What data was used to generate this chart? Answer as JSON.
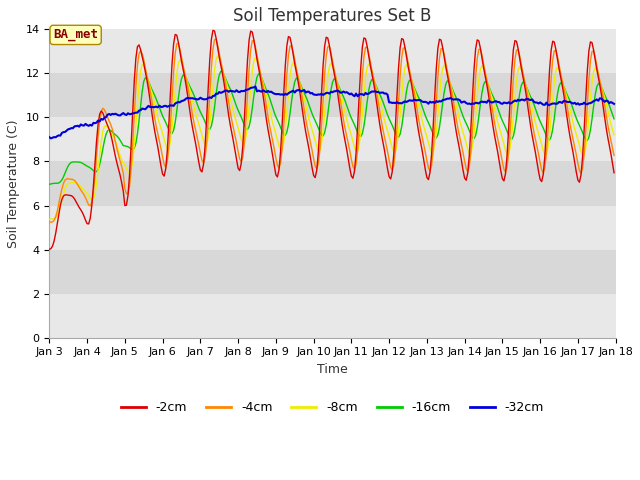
{
  "title": "Soil Temperatures Set B",
  "xlabel": "Time",
  "ylabel": "Soil Temperature (C)",
  "annotation": "BA_met",
  "ylim": [
    0,
    14
  ],
  "yticks": [
    0,
    2,
    4,
    6,
    8,
    10,
    12,
    14
  ],
  "xtick_labels": [
    "Jan 3",
    "Jan 4",
    "Jan 5",
    "Jan 6",
    "Jan 7",
    "Jan 8",
    "Jan 9",
    "Jan 10",
    "Jan 11",
    "Jan 12",
    "Jan 13",
    "Jan 14",
    "Jan 15",
    "Jan 16",
    "Jan 17",
    "Jan 18"
  ],
  "legend_labels": [
    "-2cm",
    "-4cm",
    "-8cm",
    "-16cm",
    "-32cm"
  ],
  "line_colors": [
    "#dd0000",
    "#ff8800",
    "#eeee00",
    "#00cc00",
    "#0000dd"
  ],
  "bg_color": "#ffffff",
  "plot_bg_color": "#f0f0f0",
  "band_colors": [
    "#e8e8e8",
    "#d8d8d8"
  ],
  "grid_color": "#ffffff",
  "title_fontsize": 12,
  "axis_label_fontsize": 9,
  "tick_fontsize": 8,
  "anno_fontsize": 9
}
